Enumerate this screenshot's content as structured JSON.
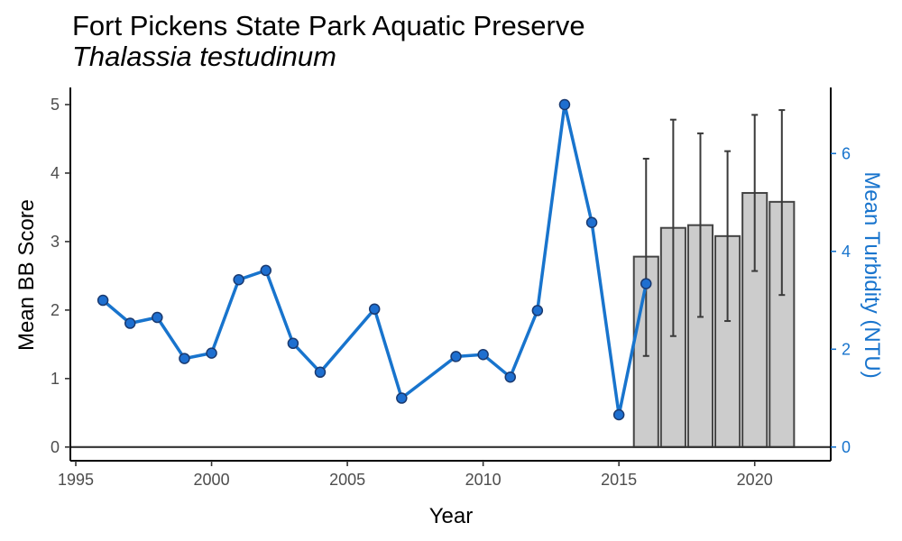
{
  "chart_data": {
    "type": "bar+line",
    "title": "Fort Pickens State Park Aquatic Preserve",
    "subtitle": "Thalassia testudinum",
    "xlabel": "Year",
    "ylabel": "Mean BB Score",
    "y2label": "Mean Turbidity (NTU)",
    "xlim": [
      1994.8,
      2022.8
    ],
    "ylim": [
      -0.2,
      5.25
    ],
    "y2lim": [
      -0.28,
      7.35
    ],
    "x_ticks": [
      1995,
      2000,
      2005,
      2010,
      2015,
      2020
    ],
    "y_ticks": [
      0,
      1,
      2,
      3,
      4,
      5
    ],
    "y2_ticks": [
      0,
      2,
      4,
      6
    ],
    "grid": false,
    "colors": {
      "line": "#1874cd",
      "point_fill": "#1e6fd0",
      "point_stroke": "#1a3a70",
      "bar_fill": "#cccccc",
      "bar_stroke": "#444444",
      "errorbar": "#3a3a3a",
      "axis": "#000000",
      "right_axis": "#1874cd"
    },
    "bars": {
      "name": "Mean BB Score",
      "x": [
        2016,
        2017,
        2018,
        2019,
        2020,
        2021
      ],
      "values": [
        2.78,
        3.2,
        3.24,
        3.08,
        3.71,
        3.58
      ],
      "error_low": [
        1.33,
        1.62,
        1.9,
        1.84,
        2.57,
        2.22
      ],
      "error_high": [
        4.21,
        4.78,
        4.58,
        4.32,
        4.85,
        4.92
      ]
    },
    "series": [
      {
        "name": "Mean Turbidity (NTU)",
        "axis": "right",
        "x": [
          1996,
          1997,
          1998,
          1999,
          2000,
          2001,
          2002,
          2003,
          2004,
          2006,
          2007,
          2009,
          2010,
          2011,
          2012,
          2013,
          2014,
          2015,
          2016
        ],
        "values": [
          3.0,
          2.53,
          2.65,
          1.81,
          1.92,
          3.42,
          3.61,
          2.12,
          1.53,
          2.82,
          1.0,
          1.85,
          1.89,
          1.43,
          2.79,
          7.0,
          4.59,
          0.66,
          3.34
        ]
      }
    ]
  }
}
